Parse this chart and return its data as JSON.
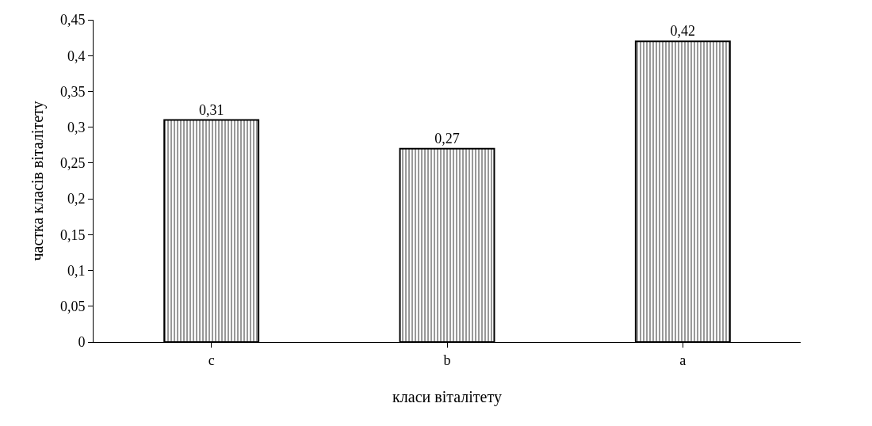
{
  "chart_data": {
    "type": "bar",
    "xlabel": "класи віталітету",
    "ylabel": "частка класів віталітету",
    "categories": [
      "c",
      "b",
      "a"
    ],
    "values": [
      0.31,
      0.27,
      0.42
    ],
    "color": "#000000",
    "value_labels": [
      "0,31",
      "0,27",
      "0,42"
    ],
    "ylim": [
      0,
      0.45
    ],
    "yticks": [
      0,
      {
        "value": 0.05,
        "label": "0,05"
      },
      {
        "value": 0.1,
        "label": "0,1"
      },
      {
        "value": 0.15,
        "label": "0,15"
      },
      {
        "value": 0.2,
        "label": "0,2"
      },
      {
        "value": 0.25,
        "label": "0,25"
      },
      {
        "value": 0.3,
        "label": "0,3"
      },
      {
        "value": 0.35,
        "label": "0,35"
      },
      {
        "value": 0.4,
        "label": "0,4"
      },
      {
        "value": 0.45,
        "label": "0,45"
      }
    ],
    "legend": false
  }
}
